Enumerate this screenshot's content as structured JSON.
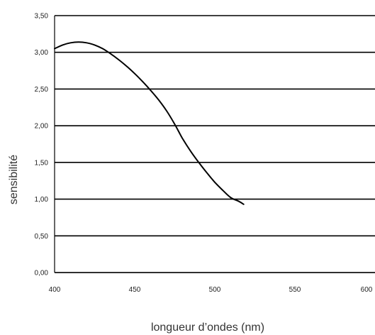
{
  "chart_data": {
    "type": "line",
    "title": "",
    "xlabel": "longueur d’ondes (nm)",
    "ylabel": "sensibilité",
    "xlim": [
      400,
      600
    ],
    "ylim": [
      0,
      3.5
    ],
    "x_ticks": [
      400,
      450,
      500,
      550,
      600
    ],
    "x_tick_labels": [
      "400",
      "450",
      "500",
      "550",
      "600"
    ],
    "y_ticks": [
      0,
      0.5,
      1,
      1.5,
      2,
      2.5,
      3,
      3.5
    ],
    "y_tick_labels": [
      "0,00",
      "0,50",
      "1,00",
      "1,50",
      "2,00",
      "2,50",
      "3,00",
      "3,50"
    ],
    "grid": "horizontal",
    "series": [
      {
        "x": [
          400,
          405,
          410,
          415,
          420,
          425,
          430,
          435,
          440,
          445,
          450,
          455,
          460,
          465,
          470,
          475,
          480,
          485,
          490,
          495,
          500,
          505,
          510,
          515,
          518
        ],
        "y": [
          3.05,
          3.1,
          3.13,
          3.14,
          3.13,
          3.1,
          3.05,
          2.98,
          2.9,
          2.81,
          2.71,
          2.6,
          2.48,
          2.35,
          2.2,
          2.02,
          1.82,
          1.65,
          1.5,
          1.36,
          1.23,
          1.12,
          1.02,
          0.97,
          0.93
        ]
      }
    ],
    "colors": {
      "line": "#000000",
      "grid": "#000000"
    }
  }
}
